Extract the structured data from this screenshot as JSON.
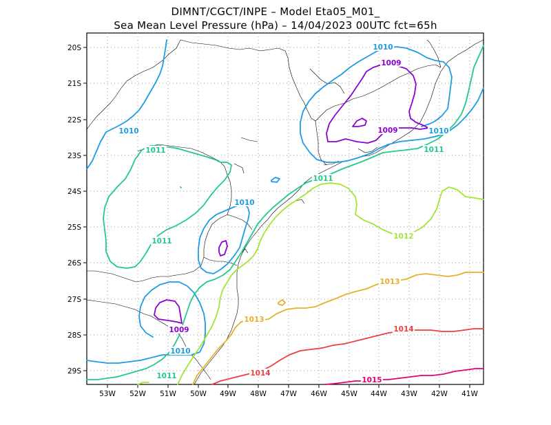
{
  "header": {
    "line1": "DIMNT/CGCT/INPE –  Model Eta05_M01_",
    "line2": "Sea Mean Level Pressure (hPa) – 14/04/2023 00UTC fct=65h"
  },
  "axes": {
    "lat_labels": [
      "20S",
      "21S",
      "22S",
      "23S",
      "24S",
      "25S",
      "26S",
      "27S",
      "28S",
      "29S"
    ],
    "lon_labels": [
      "53W",
      "52W",
      "51W",
      "50W",
      "49W",
      "48W",
      "47W",
      "46W",
      "45W",
      "44W",
      "43W",
      "42W",
      "41W"
    ],
    "lon_range": [
      -53.7,
      -40.6
    ],
    "lat_range": [
      -29.4,
      -19.6
    ]
  },
  "isobars": {
    "c1009": "1009",
    "c1010": "1010",
    "c1011": "1011",
    "c1012": "1012",
    "c1013": "1013",
    "c1014": "1014",
    "c1015": "1015"
  },
  "colors": {
    "c1009": "#8a00d4",
    "c1010": "#1c9be6",
    "c1011": "#1fca8c",
    "c1012": "#a0e632",
    "c1013": "#e6af2d",
    "c1014": "#f03c3c",
    "c1015": "#e6006e",
    "coast": "#000000",
    "grid": "#9a9a9a"
  }
}
